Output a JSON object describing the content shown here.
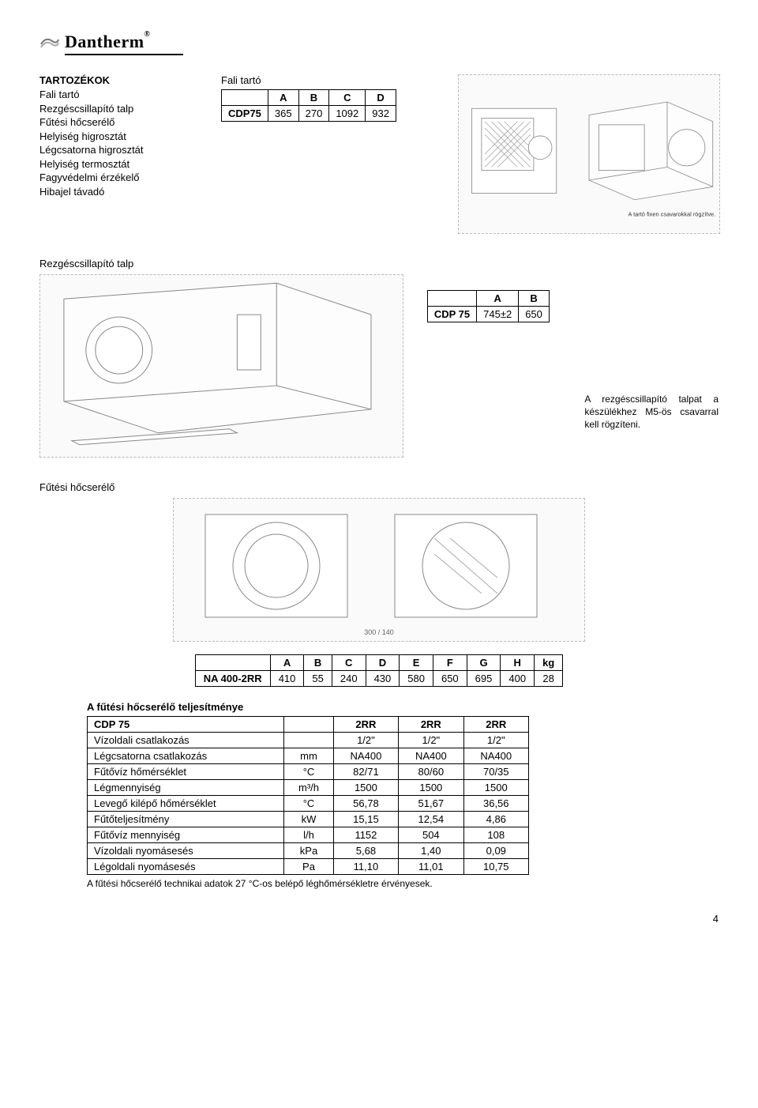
{
  "logo": {
    "brand": "Dantherm",
    "reg": "®"
  },
  "accessories": {
    "title": "TARTOZÉKOK",
    "items": [
      "Fali tartó",
      "Rezgéscsillapító talp",
      "Fűtési hőcserélő",
      "Helyiség higrosztát",
      "Légcsatorna higrosztát",
      "Helyiség termosztát",
      "Fagyvédelmi érzékelő",
      "Hibajel távadó"
    ]
  },
  "fali_tarto": {
    "title": "Fali tartó",
    "headers": [
      "",
      "A",
      "B",
      "C",
      "D"
    ],
    "row": [
      "CDP75",
      "365",
      "270",
      "1092",
      "932"
    ],
    "diagram_note": "A tartó fixen csavarokkal rögzítve."
  },
  "rezges": {
    "title": "Rezgéscsillapító talp",
    "headers": [
      "",
      "A",
      "B"
    ],
    "row": [
      "CDP 75",
      "745±2",
      "650"
    ],
    "note": "A rezgéscsillapító talpat a készülékhez M5-ös csavarral kell rögzíteni."
  },
  "futesi": {
    "title": "Fűtési hőcserélő",
    "headers": [
      "",
      "A",
      "B",
      "C",
      "D",
      "E",
      "F",
      "G",
      "H",
      "kg"
    ],
    "row": [
      "NA 400-2RR",
      "410",
      "55",
      "240",
      "430",
      "580",
      "650",
      "695",
      "400",
      "28"
    ]
  },
  "perf": {
    "title": "A fűtési hőcserélő teljesítménye",
    "header": [
      "CDP 75",
      "",
      "2RR",
      "2RR",
      "2RR"
    ],
    "rows": [
      {
        "label": "Vízoldali csatlakozás",
        "unit": "",
        "v": [
          "1/2\"",
          "1/2\"",
          "1/2\""
        ]
      },
      {
        "label": "Légcsatorna csatlakozás",
        "unit": "mm",
        "v": [
          "NA400",
          "NA400",
          "NA400"
        ]
      },
      {
        "label": "Fűtővíz hőmérséklet",
        "unit": "°C",
        "v": [
          "82/71",
          "80/60",
          "70/35"
        ]
      },
      {
        "label": "Légmennyiség",
        "unit": "m³/h",
        "v": [
          "1500",
          "1500",
          "1500"
        ]
      },
      {
        "label": "Levegő kilépő hőmérséklet",
        "unit": "°C",
        "v": [
          "56,78",
          "51,67",
          "36,56"
        ]
      },
      {
        "label": "Fűtőteljesítmény",
        "unit": "kW",
        "v": [
          "15,15",
          "12,54",
          "4,86"
        ]
      },
      {
        "label": "Fűtővíz mennyiség",
        "unit": "l/h",
        "v": [
          "1152",
          "504",
          "108"
        ]
      },
      {
        "label": "Vízoldali nyomásesés",
        "unit": "kPa",
        "v": [
          "5,68",
          "1,40",
          "0,09"
        ]
      },
      {
        "label": "Légoldali nyomásesés",
        "unit": "Pa",
        "v": [
          "11,10",
          "11,01",
          "10,75"
        ]
      }
    ],
    "note": "A fűtési hőcserélő technikai adatok 27 °C-os belépő léghőmérsékletre érvényesek."
  },
  "page_number": "4"
}
